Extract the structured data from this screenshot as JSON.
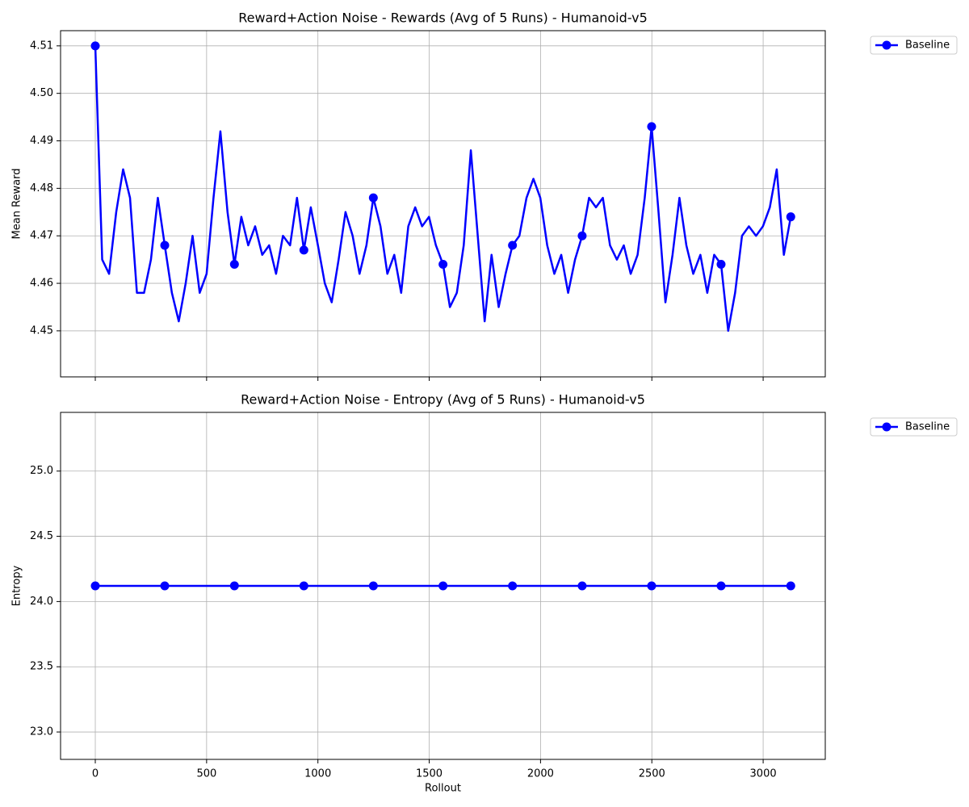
{
  "chart_data": [
    {
      "type": "line",
      "title": "Reward+Action Noise - Rewards (Avg of 5 Runs) - Humanoid-v5",
      "ylabel": "Mean Reward",
      "x": [
        0,
        31,
        62,
        94,
        125,
        156,
        187,
        219,
        250,
        281,
        312,
        344,
        375,
        406,
        437,
        469,
        500,
        531,
        562,
        594,
        625,
        656,
        687,
        718,
        750,
        781,
        812,
        843,
        875,
        906,
        937,
        968,
        1000,
        1031,
        1062,
        1093,
        1124,
        1156,
        1187,
        1218,
        1249,
        1281,
        1312,
        1343,
        1374,
        1406,
        1437,
        1468,
        1499,
        1530,
        1562,
        1593,
        1624,
        1655,
        1687,
        1718,
        1749,
        1780,
        1812,
        1843,
        1874,
        1905,
        1937,
        1968,
        1999,
        2030,
        2062,
        2093,
        2124,
        2155,
        2187,
        2218,
        2249,
        2280,
        2312,
        2343,
        2374,
        2405,
        2436,
        2468,
        2499,
        2530,
        2561,
        2593,
        2624,
        2655,
        2686,
        2718,
        2749,
        2780,
        2811,
        2843,
        2874,
        2905,
        2936,
        2968,
        2999,
        3030,
        3061,
        3093,
        3124
      ],
      "series": [
        {
          "name": "Baseline",
          "color": "#0000ff",
          "markevery": 10,
          "values": [
            4.51,
            4.465,
            4.462,
            4.475,
            4.484,
            4.478,
            4.458,
            4.458,
            4.465,
            4.478,
            4.468,
            4.458,
            4.452,
            4.46,
            4.47,
            4.458,
            4.462,
            4.478,
            4.492,
            4.475,
            4.464,
            4.474,
            4.468,
            4.472,
            4.466,
            4.468,
            4.462,
            4.47,
            4.468,
            4.478,
            4.467,
            4.476,
            4.468,
            4.46,
            4.456,
            4.465,
            4.475,
            4.47,
            4.462,
            4.468,
            4.478,
            4.472,
            4.462,
            4.466,
            4.458,
            4.472,
            4.476,
            4.472,
            4.474,
            4.468,
            4.464,
            4.455,
            4.458,
            4.468,
            4.488,
            4.47,
            4.452,
            4.466,
            4.455,
            4.462,
            4.468,
            4.47,
            4.478,
            4.482,
            4.478,
            4.468,
            4.462,
            4.466,
            4.458,
            4.465,
            4.47,
            4.478,
            4.476,
            4.478,
            4.468,
            4.465,
            4.468,
            4.462,
            4.466,
            4.478,
            4.493,
            4.475,
            4.456,
            4.466,
            4.478,
            4.468,
            4.462,
            4.466,
            4.458,
            4.466,
            4.464,
            4.45,
            4.458,
            4.47,
            4.472,
            4.47,
            4.472,
            4.476,
            4.484,
            4.466,
            4.474
          ]
        }
      ],
      "xlim": [
        -156,
        3279
      ],
      "xticks": [
        0,
        500,
        1000,
        1500,
        2000,
        2500,
        3000
      ],
      "xtick_labels": false,
      "ylim": [
        4.4403,
        4.5132
      ],
      "yticks": [
        4.45,
        4.46,
        4.47,
        4.48,
        4.49,
        {
          "value": 4.5,
          "label": "4.50"
        },
        4.51
      ],
      "grid": true,
      "legend": "outside right"
    },
    {
      "type": "line",
      "title": "Reward+Action Noise - Entropy (Avg of 5 Runs) - Humanoid-v5",
      "xlabel": "Rollout",
      "ylabel": "Entropy",
      "x": [
        0,
        312,
        625,
        937,
        1249,
        1562,
        1874,
        2187,
        2499,
        2811,
        3124
      ],
      "series": [
        {
          "name": "Baseline",
          "color": "#0000ff",
          "markevery": 1,
          "values": [
            24.12,
            24.12,
            24.12,
            24.12,
            24.12,
            24.12,
            24.12,
            24.12,
            24.12,
            24.12,
            24.12
          ]
        }
      ],
      "xlim": [
        -156,
        3279
      ],
      "xticks": [
        0,
        500,
        1000,
        1500,
        2000,
        2500,
        3000
      ],
      "xtick_labels": true,
      "ylim": [
        22.79,
        25.45
      ],
      "yticks": [
        {
          "value": 23,
          "label": "23.0"
        },
        23.5,
        {
          "value": 24,
          "label": "24.0"
        },
        24.5,
        {
          "value": 25,
          "label": "25.0"
        }
      ],
      "grid": true,
      "legend": "outside right"
    }
  ]
}
